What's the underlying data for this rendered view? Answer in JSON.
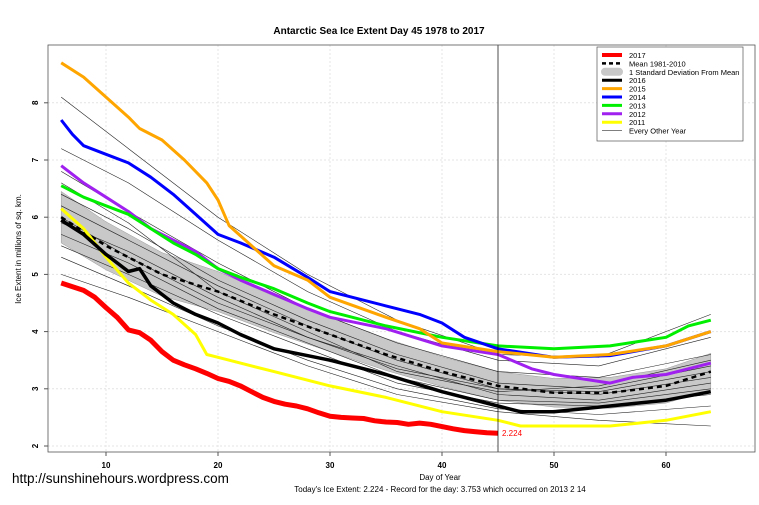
{
  "chart_data": {
    "type": "line",
    "title": "Antarctic Sea Ice Extent Day 45 1978 to 2017",
    "xlabel": "Day of Year",
    "ylabel": "Ice Extent in millions of sq. km.",
    "subtitle": "Today's Ice Extent: 2.224  - Record for the day: 3.753 which occurred on 2013 2 14",
    "watermark": "http://sunshinehours.wordpress.com",
    "xlim": [
      5.5,
      65.5
    ],
    "ylim": [
      1.9,
      9.0
    ],
    "xticks": [
      10,
      20,
      30,
      40,
      50,
      60
    ],
    "yticks": [
      2,
      3,
      4,
      5,
      6,
      7,
      8
    ],
    "grid": true,
    "legend_position": "top-right",
    "current_day_marker": 45,
    "end_label": "2.224",
    "mean": {
      "name": "Mean 1981-2010",
      "x": [
        6,
        10,
        15,
        20,
        25,
        30,
        35,
        40,
        45,
        50,
        55,
        60,
        64
      ],
      "y": [
        6.0,
        5.5,
        5.0,
        4.7,
        4.3,
        3.95,
        3.6,
        3.3,
        3.05,
        2.93,
        2.93,
        3.05,
        3.3
      ],
      "sd": [
        0.45,
        0.42,
        0.38,
        0.35,
        0.32,
        0.3,
        0.28,
        0.26,
        0.25,
        0.25,
        0.27,
        0.3,
        0.32
      ]
    },
    "sd_band_label": "1 Standard Deviation From Mean",
    "series": [
      {
        "name": "2017",
        "color": "#ff0000",
        "width": 5,
        "x": [
          6,
          8,
          9,
          10,
          11,
          12,
          13,
          14,
          15,
          16,
          17,
          18,
          19,
          20,
          21,
          22,
          23,
          24,
          25,
          26,
          27,
          28,
          29,
          30,
          31,
          32,
          33,
          34,
          35,
          36,
          37,
          38,
          39,
          40,
          41,
          42,
          43,
          44,
          45
        ],
        "y": [
          4.85,
          4.72,
          4.6,
          4.42,
          4.25,
          4.03,
          3.98,
          3.85,
          3.65,
          3.5,
          3.42,
          3.35,
          3.27,
          3.18,
          3.13,
          3.05,
          2.95,
          2.85,
          2.78,
          2.73,
          2.7,
          2.65,
          2.58,
          2.52,
          2.5,
          2.49,
          2.48,
          2.44,
          2.42,
          2.41,
          2.38,
          2.4,
          2.38,
          2.34,
          2.3,
          2.27,
          2.25,
          2.23,
          2.224
        ]
      },
      {
        "name": "2016",
        "color": "#000000",
        "width": 3.5,
        "x": [
          6,
          8,
          10,
          12,
          13,
          14,
          16,
          18,
          20,
          22,
          25,
          30,
          35,
          40,
          45,
          47,
          50,
          55,
          60,
          64
        ],
        "y": [
          5.95,
          5.7,
          5.35,
          5.05,
          5.1,
          4.8,
          4.5,
          4.3,
          4.15,
          3.95,
          3.7,
          3.5,
          3.25,
          2.95,
          2.7,
          2.6,
          2.6,
          2.7,
          2.8,
          2.95
        ]
      },
      {
        "name": "2015",
        "color": "#ffa500",
        "width": 3,
        "x": [
          6,
          8,
          10,
          12,
          13,
          15,
          17,
          19,
          20,
          21,
          23,
          25,
          28,
          30,
          35,
          38,
          40,
          45,
          50,
          55,
          60,
          64
        ],
        "y": [
          8.7,
          8.45,
          8.1,
          7.75,
          7.55,
          7.35,
          7.0,
          6.6,
          6.3,
          5.85,
          5.5,
          5.15,
          4.9,
          4.6,
          4.25,
          4.05,
          3.8,
          3.65,
          3.55,
          3.6,
          3.75,
          4.0
        ]
      },
      {
        "name": "2014",
        "color": "#0000ff",
        "width": 3,
        "x": [
          6,
          7,
          8,
          10,
          12,
          14,
          16,
          18,
          20,
          22,
          25,
          28,
          30,
          32,
          35,
          38,
          40,
          42,
          45,
          50,
          55,
          60,
          64
        ],
        "y": [
          7.7,
          7.45,
          7.25,
          7.1,
          6.95,
          6.7,
          6.4,
          6.05,
          5.7,
          5.55,
          5.3,
          4.95,
          4.7,
          4.6,
          4.45,
          4.3,
          4.15,
          3.9,
          3.7,
          3.55,
          3.58,
          3.75,
          4.0
        ]
      },
      {
        "name": "2013",
        "color": "#00ee00",
        "width": 3,
        "x": [
          6,
          8,
          10,
          12,
          14,
          16,
          18,
          20,
          22,
          25,
          28,
          30,
          35,
          40,
          45,
          50,
          55,
          60,
          62,
          64
        ],
        "y": [
          6.55,
          6.35,
          6.2,
          6.05,
          5.8,
          5.55,
          5.35,
          5.1,
          4.95,
          4.75,
          4.5,
          4.35,
          4.1,
          3.9,
          3.75,
          3.7,
          3.75,
          3.9,
          4.1,
          4.2
        ]
      },
      {
        "name": "2012",
        "color": "#a020f0",
        "width": 3,
        "x": [
          6,
          8,
          10,
          12,
          14,
          16,
          18,
          20,
          22,
          25,
          28,
          30,
          35,
          40,
          45,
          48,
          50,
          55,
          57,
          60,
          64
        ],
        "y": [
          6.9,
          6.6,
          6.35,
          6.1,
          5.8,
          5.6,
          5.4,
          5.1,
          4.9,
          4.65,
          4.4,
          4.25,
          4.05,
          3.75,
          3.6,
          3.35,
          3.25,
          3.1,
          3.2,
          3.25,
          3.45
        ]
      },
      {
        "name": "2011",
        "color": "#ffff00",
        "width": 3,
        "x": [
          6,
          8,
          10,
          12,
          14,
          16,
          18,
          19,
          20,
          22,
          25,
          30,
          35,
          40,
          45,
          47,
          50,
          55,
          60,
          64
        ],
        "y": [
          6.15,
          5.8,
          5.3,
          4.85,
          4.55,
          4.3,
          3.95,
          3.6,
          3.55,
          3.45,
          3.3,
          3.05,
          2.85,
          2.6,
          2.45,
          2.35,
          2.35,
          2.35,
          2.45,
          2.6
        ]
      }
    ],
    "other_years": {
      "name": "Every Other Year",
      "x": [
        6,
        12,
        20,
        28,
        36,
        45,
        54,
        64
      ],
      "y": [
        [
          8.1,
          7.2,
          6.0,
          5.0,
          4.2,
          3.6,
          3.55,
          4.3
        ],
        [
          7.2,
          6.6,
          5.6,
          4.7,
          4.0,
          3.5,
          3.4,
          3.9
        ],
        [
          6.8,
          6.1,
          5.2,
          4.4,
          3.8,
          3.3,
          3.2,
          3.6
        ],
        [
          6.4,
          5.8,
          4.9,
          4.2,
          3.6,
          3.1,
          3.0,
          3.4
        ],
        [
          6.2,
          5.6,
          4.8,
          4.1,
          3.5,
          3.0,
          2.9,
          3.2
        ],
        [
          5.9,
          5.4,
          4.6,
          3.9,
          3.4,
          2.9,
          2.8,
          3.1
        ],
        [
          5.7,
          5.2,
          4.4,
          3.8,
          3.2,
          2.8,
          2.75,
          3.0
        ],
        [
          5.5,
          5.0,
          4.3,
          3.7,
          3.1,
          2.75,
          2.7,
          2.9
        ],
        [
          5.3,
          4.8,
          4.1,
          3.5,
          3.0,
          2.65,
          2.55,
          2.7
        ],
        [
          6.6,
          5.9,
          4.7,
          4.0,
          3.3,
          2.95,
          3.05,
          3.5
        ],
        [
          5.0,
          4.6,
          4.0,
          3.4,
          2.9,
          2.6,
          2.45,
          2.35
        ],
        [
          6.0,
          5.3,
          4.5,
          3.9,
          3.35,
          3.0,
          2.95,
          3.3
        ]
      ]
    }
  }
}
